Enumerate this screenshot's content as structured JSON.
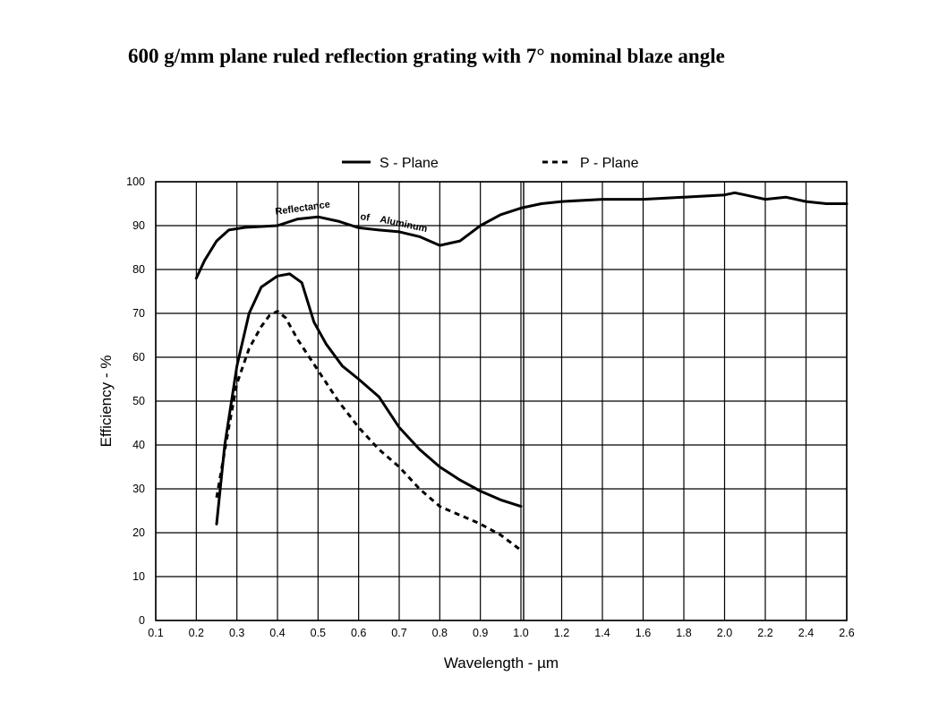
{
  "title": "600 g/mm plane ruled reflection grating with 7° nominal blaze angle",
  "chart_data": {
    "type": "line",
    "xlabel": "Wavelength - µm",
    "ylabel": "Efficiency - %",
    "ylim": [
      0,
      100
    ],
    "yticks": [
      0,
      10,
      20,
      30,
      40,
      50,
      60,
      70,
      80,
      90,
      100
    ],
    "xticks_left": [
      0.1,
      0.2,
      0.3,
      0.4,
      0.5,
      0.6,
      0.7,
      0.8,
      0.9,
      1.0
    ],
    "xticks_right": [
      1.2,
      1.4,
      1.6,
      1.8,
      2.0,
      2.2,
      2.4,
      2.6
    ],
    "x_scale_note": "piecewise: 0.1-1.0 at one scale, 1.0-2.6 at a compressed scale",
    "grid": true,
    "legend_position": "top",
    "series": [
      {
        "name": "S - Plane",
        "style": "solid",
        "points": [
          [
            0.25,
            22
          ],
          [
            0.27,
            40
          ],
          [
            0.3,
            58
          ],
          [
            0.33,
            70
          ],
          [
            0.36,
            76
          ],
          [
            0.4,
            78.5
          ],
          [
            0.43,
            79
          ],
          [
            0.46,
            77
          ],
          [
            0.49,
            68
          ],
          [
            0.52,
            63
          ],
          [
            0.56,
            58
          ],
          [
            0.6,
            55
          ],
          [
            0.65,
            51
          ],
          [
            0.7,
            44
          ],
          [
            0.75,
            39
          ],
          [
            0.8,
            35
          ],
          [
            0.85,
            32
          ],
          [
            0.9,
            29.5
          ],
          [
            0.95,
            27.5
          ],
          [
            1.0,
            26
          ]
        ]
      },
      {
        "name": "P - Plane",
        "style": "dashed",
        "points": [
          [
            0.25,
            28
          ],
          [
            0.28,
            44
          ],
          [
            0.3,
            54
          ],
          [
            0.33,
            62
          ],
          [
            0.36,
            67
          ],
          [
            0.38,
            69.5
          ],
          [
            0.4,
            70.5
          ],
          [
            0.42,
            69
          ],
          [
            0.45,
            64
          ],
          [
            0.5,
            57
          ],
          [
            0.55,
            50
          ],
          [
            0.6,
            44
          ],
          [
            0.65,
            39
          ],
          [
            0.7,
            35
          ],
          [
            0.75,
            30
          ],
          [
            0.8,
            26
          ],
          [
            0.85,
            24
          ],
          [
            0.9,
            22
          ],
          [
            0.95,
            19.5
          ],
          [
            1.0,
            16
          ]
        ]
      },
      {
        "label": "Reflectance of Aluminum",
        "style": "solid",
        "points": [
          [
            0.2,
            78
          ],
          [
            0.22,
            82
          ],
          [
            0.25,
            86.5
          ],
          [
            0.28,
            89
          ],
          [
            0.32,
            89.6
          ],
          [
            0.36,
            89.8
          ],
          [
            0.4,
            90
          ],
          [
            0.45,
            91.5
          ],
          [
            0.5,
            92
          ],
          [
            0.55,
            91
          ],
          [
            0.6,
            89.5
          ],
          [
            0.65,
            89
          ],
          [
            0.7,
            88.6
          ],
          [
            0.75,
            87.5
          ],
          [
            0.8,
            85.5
          ],
          [
            0.85,
            86.5
          ],
          [
            0.9,
            90
          ],
          [
            0.95,
            92.5
          ],
          [
            1.0,
            94
          ],
          [
            1.1,
            95
          ],
          [
            1.2,
            95.5
          ],
          [
            1.4,
            96
          ],
          [
            1.6,
            96
          ],
          [
            1.8,
            96.5
          ],
          [
            2.0,
            97
          ],
          [
            2.05,
            97.5
          ],
          [
            2.1,
            97
          ],
          [
            2.2,
            96
          ],
          [
            2.3,
            96.5
          ],
          [
            2.4,
            95.5
          ],
          [
            2.5,
            95
          ],
          [
            2.6,
            95
          ]
        ]
      }
    ],
    "annotations": [
      {
        "text": "Reflectance",
        "near_series": "Reflectance of Aluminum"
      },
      {
        "text": "of",
        "near_series": "Reflectance of Aluminum"
      },
      {
        "text": "Aluminum",
        "near_series": "Reflectance of Aluminum"
      }
    ]
  }
}
